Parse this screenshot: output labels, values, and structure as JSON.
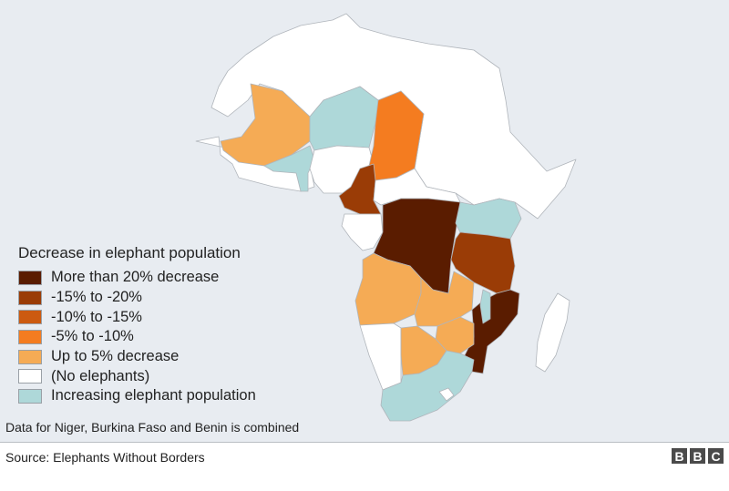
{
  "legend": {
    "title": "Decrease in elephant population",
    "items": [
      {
        "label": "More than 20% decrease",
        "color": "#5a1c00"
      },
      {
        "label": "-15% to -20%",
        "color": "#9a3c06"
      },
      {
        "label": "-10% to -15%",
        "color": "#cc5a10"
      },
      {
        "label": "-5% to -10%",
        "color": "#f47c20"
      },
      {
        "label": "Up to 5% decrease",
        "color": "#f5ab55"
      },
      {
        "label": "(No elephants)",
        "color": "#ffffff"
      },
      {
        "label": "Increasing elephant population",
        "color": "#aed8d9"
      }
    ]
  },
  "note": "Data for Niger, Burkina Faso and Benin is combined",
  "source": "Source: Elephants Without Borders",
  "logo": {
    "letters": [
      "B",
      "B",
      "C"
    ]
  },
  "colors": {
    "ocean": "#e8ecf1",
    "land_border": "#b0b5bb"
  }
}
